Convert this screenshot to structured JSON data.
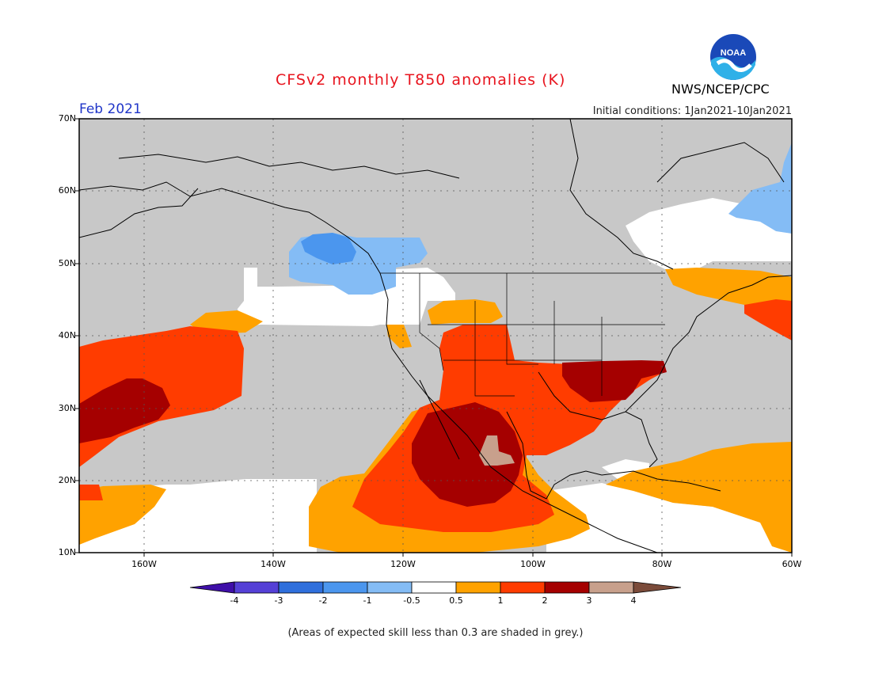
{
  "title": "CFSv2 monthly T850 anomalies (K)",
  "period": "Feb 2021",
  "initial_conditions": "Initial conditions: 1Jan2021-10Jan2021",
  "agency": "NWS/NCEP/CPC",
  "logo_text": "NOAA",
  "lat_labels": [
    "70N",
    "60N",
    "50N",
    "40N",
    "30N",
    "20N",
    "10N"
  ],
  "lon_labels": [
    "160W",
    "140W",
    "120W",
    "100W",
    "80W",
    "60W"
  ],
  "colorbar": {
    "labels": [
      "-4",
      "-3",
      "-2",
      "-1",
      "-0.5",
      "0.5",
      "1",
      "2",
      "3",
      "4"
    ],
    "colors": [
      "#3f0fa8",
      "#5540d6",
      "#2f6fdc",
      "#4b96ee",
      "#84bcf5",
      "#ffffff",
      "#ffa200",
      "#ff3c00",
      "#a50000",
      "#c8a08c",
      "#7b4b3a"
    ]
  },
  "colors": {
    "grey_low_skill": "#c8c8c8",
    "ocean_white": "#ffffff",
    "light_blue": "#84bcf5",
    "blue": "#4b96ee",
    "orange": "#ffa200",
    "red": "#ff3c00",
    "dark_red": "#a50000",
    "tan": "#c8a08c"
  },
  "footnote": "(Areas of expected skill less than 0.3 are shaded in grey.)"
}
